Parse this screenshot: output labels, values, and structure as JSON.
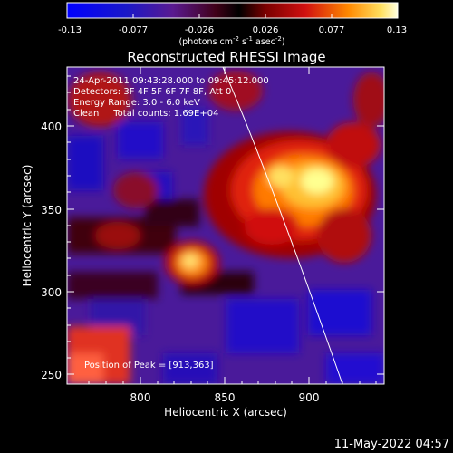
{
  "colorbar": {
    "ticks": [
      "-0.13",
      "-0.077",
      "-0.026",
      "0.026",
      "0.077",
      "0.13"
    ],
    "unit_main": "(photons cm",
    "unit_sup1": "-2",
    "unit_mid1": " s",
    "unit_sup2": "-1",
    "unit_mid2": " asec",
    "unit_sup3": "-2",
    "unit_close": ")"
  },
  "title": "Reconstructed RHESSI Image",
  "info": {
    "line1": "24-Apr-2011 09:43:28.000 to 09:45:12.000",
    "line2": "Detectors: 3F 4F 5F 6F 7F 8F, Att 0",
    "line3": "Energy Range: 3.0 - 6.0 keV",
    "line4": "Clean     Total counts: 1.69E+04"
  },
  "peak_label": "Position of Peak = [913,363]",
  "axes": {
    "xlabel": "Heliocentric X (arcsec)",
    "ylabel": "Heliocentric Y (arcsec)",
    "xticks": [
      "800",
      "850",
      "900"
    ],
    "yticks": [
      "400",
      "350",
      "300",
      "250"
    ]
  },
  "footer_date": "11-May-2022 04:57",
  "colors": {
    "background": "#000000",
    "low": "#1a0aa0",
    "mid": "#6a2ab0",
    "high": "#ffffa0"
  }
}
